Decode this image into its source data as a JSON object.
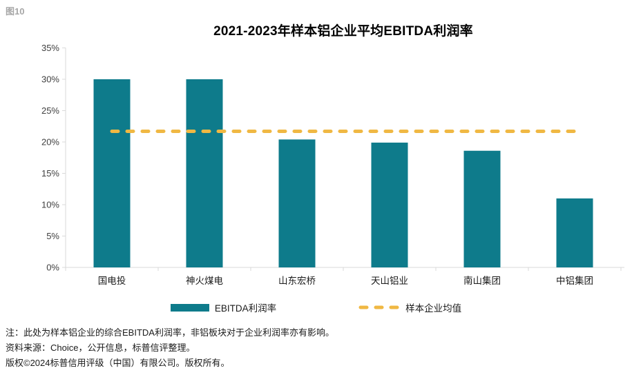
{
  "figure_label": "图10",
  "title": "2021-2023年样本铝企业平均EBITDA利润率",
  "legend": {
    "bar_label": "EBITDA利润率",
    "line_label": "样本企业均值"
  },
  "notes": [
    "注：此处为样本铝企业的综合EBITDA利润率，非铝板块对于企业利润率亦有影响。",
    "资料来源：Choice，公开信息，标普信评整理。",
    "版权©2024标普信用评级（中国）有限公司。版权所有。"
  ],
  "colors": {
    "bar": "#0E7B8B",
    "average_line": "#F0B843",
    "axis": "#D9D9D9",
    "figure_label": "#A6A6A6",
    "tick_text": "#404040"
  },
  "chart_data": {
    "type": "bar",
    "title": "2021-2023年样本铝企业平均EBITDA利润率",
    "categories": [
      "国电投",
      "神火煤电",
      "山东宏桥",
      "天山铝业",
      "南山集团",
      "中铝集团"
    ],
    "values": [
      30.0,
      30.0,
      20.4,
      19.9,
      18.6,
      11.0
    ],
    "average_line": 21.7,
    "series_labels": [
      "EBITDA利润率",
      "样本企业均值"
    ],
    "xlabel": "",
    "ylabel": "",
    "ylim": [
      0,
      35
    ],
    "ytick_step": 5,
    "ytick_format": "percent",
    "grid": false,
    "legend_position": "bottom"
  }
}
